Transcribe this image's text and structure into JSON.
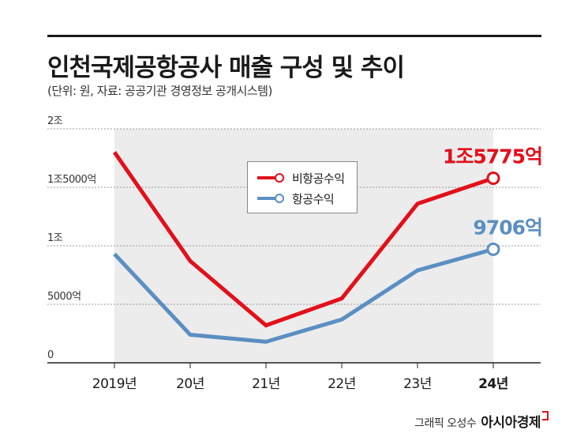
{
  "title": "인천국제공항공사 매출 구성 및 추이",
  "subtitle": "(단위: 원, 자료: 공공기관 경영정보 공개시스템)",
  "credit": {
    "text": "그래픽 오성수",
    "brand": "아시아경제"
  },
  "colors": {
    "non_aero": "#e2101b",
    "aero": "#5b8fc2",
    "area": "#ececec",
    "grid": "#999999"
  },
  "chart_data": {
    "type": "line",
    "categories": [
      "2019년",
      "20년",
      "21년",
      "22년",
      "23년",
      "24년"
    ],
    "ylim": [
      0,
      20000
    ],
    "yticks": [
      {
        "value": 0,
        "label": "0"
      },
      {
        "value": 5000,
        "label": "5000억"
      },
      {
        "value": 10000,
        "label": "1조"
      },
      {
        "value": 15000,
        "label": "1조5000억"
      },
      {
        "value": 20000,
        "label": "2조"
      }
    ],
    "series": [
      {
        "name": "비항공수익",
        "values": [
          18000,
          8700,
          3200,
          5500,
          13600,
          15775
        ],
        "end_label": "1조5775억"
      },
      {
        "name": "항공수익",
        "values": [
          9300,
          2400,
          1800,
          3700,
          7900,
          9706
        ],
        "end_label": "9706억"
      }
    ],
    "legend": "upper-center",
    "grid": true
  }
}
